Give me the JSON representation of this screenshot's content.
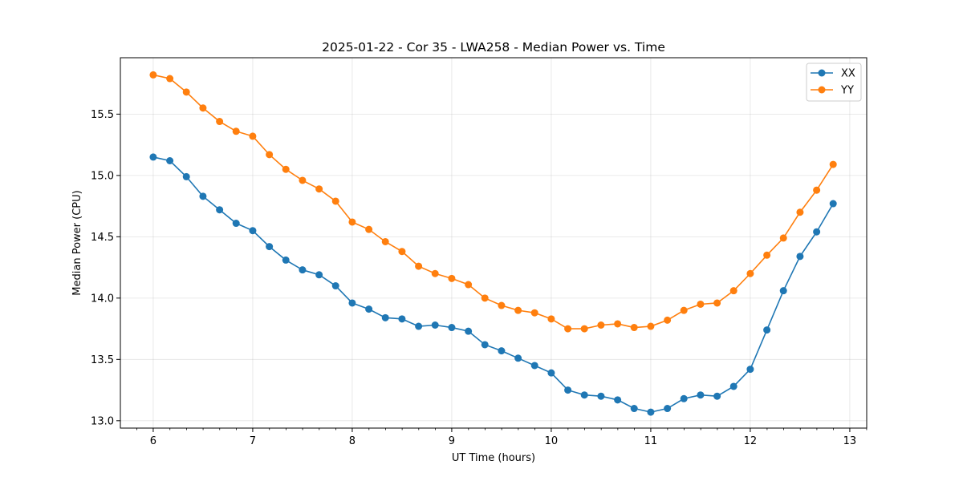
{
  "chart_data": {
    "type": "line",
    "title": "2025-01-22 - Cor 35 - LWA258 - Median Power vs. Time",
    "xlabel": "UT Time (hours)",
    "ylabel": "Median Power (CPU)",
    "xlim": [
      5.67,
      13.17
    ],
    "ylim": [
      12.94,
      15.96
    ],
    "xticks": [
      6,
      7,
      8,
      9,
      10,
      11,
      12,
      13
    ],
    "yticks": [
      13.0,
      13.5,
      14.0,
      14.5,
      15.0,
      15.5
    ],
    "ytick_labels": [
      "13.0",
      "13.5",
      "14.0",
      "14.5",
      "15.0",
      "15.5"
    ],
    "x_minor_step": 0.1667,
    "grid": true,
    "legend_position": "top-right",
    "x": [
      6.0,
      6.167,
      6.333,
      6.5,
      6.667,
      6.833,
      7.0,
      7.167,
      7.333,
      7.5,
      7.667,
      7.833,
      8.0,
      8.167,
      8.333,
      8.5,
      8.667,
      8.833,
      9.0,
      9.167,
      9.333,
      9.5,
      9.667,
      9.833,
      10.0,
      10.167,
      10.333,
      10.5,
      10.667,
      10.833,
      11.0,
      11.167,
      11.333,
      11.5,
      11.667,
      11.833,
      12.0,
      12.167,
      12.333,
      12.5,
      12.667,
      12.833
    ],
    "series": [
      {
        "name": "XX",
        "color": "#1f77b4",
        "values": [
          15.15,
          15.12,
          14.99,
          14.83,
          14.72,
          14.61,
          14.55,
          14.42,
          14.31,
          14.23,
          14.19,
          14.1,
          13.96,
          13.91,
          13.84,
          13.83,
          13.77,
          13.78,
          13.76,
          13.73,
          13.62,
          13.57,
          13.51,
          13.45,
          13.39,
          13.25,
          13.21,
          13.2,
          13.17,
          13.1,
          13.07,
          13.1,
          13.18,
          13.21,
          13.2,
          13.28,
          13.42,
          13.74,
          14.06,
          14.34,
          14.54,
          14.77
        ]
      },
      {
        "name": "YY",
        "color": "#ff7f0e",
        "values": [
          15.82,
          15.79,
          15.68,
          15.55,
          15.44,
          15.36,
          15.32,
          15.17,
          15.05,
          14.96,
          14.89,
          14.79,
          14.62,
          14.56,
          14.46,
          14.38,
          14.26,
          14.2,
          14.16,
          14.11,
          14.0,
          13.94,
          13.9,
          13.88,
          13.83,
          13.75,
          13.75,
          13.78,
          13.79,
          13.76,
          13.77,
          13.82,
          13.9,
          13.95,
          13.96,
          14.06,
          14.2,
          14.35,
          14.49,
          14.7,
          14.88,
          15.09
        ]
      }
    ]
  }
}
